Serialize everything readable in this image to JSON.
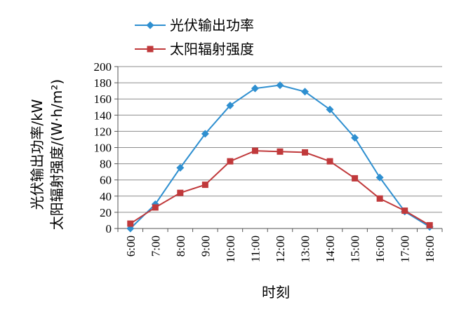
{
  "chart_data": {
    "type": "line",
    "categories": [
      "6:00",
      "7:00",
      "8:00",
      "9:00",
      "10:00",
      "11:00",
      "12:00",
      "13:00",
      "14:00",
      "15:00",
      "16:00",
      "17:00",
      "18:00"
    ],
    "series": [
      {
        "name": "光伏输出功率",
        "color": "#2e8fd0",
        "marker": "diamond",
        "values": [
          0,
          30,
          75,
          117,
          152,
          173,
          177,
          169,
          147,
          112,
          63,
          21,
          2
        ]
      },
      {
        "name": "太阳辐射强度",
        "color": "#c0393b",
        "marker": "square",
        "values": [
          6,
          26,
          44,
          54,
          83,
          96,
          95,
          94,
          83,
          62,
          37,
          22,
          4
        ]
      }
    ],
    "xlabel": "时刻",
    "ylabel": [
      "光伏输出功率/kW",
      "太阳辐射强度/(W·h/m²)"
    ],
    "ylim": [
      0,
      200
    ],
    "yticks": [
      0,
      20,
      40,
      60,
      80,
      100,
      120,
      140,
      160,
      180,
      200
    ],
    "grid": true,
    "legend_position": "top-left"
  }
}
